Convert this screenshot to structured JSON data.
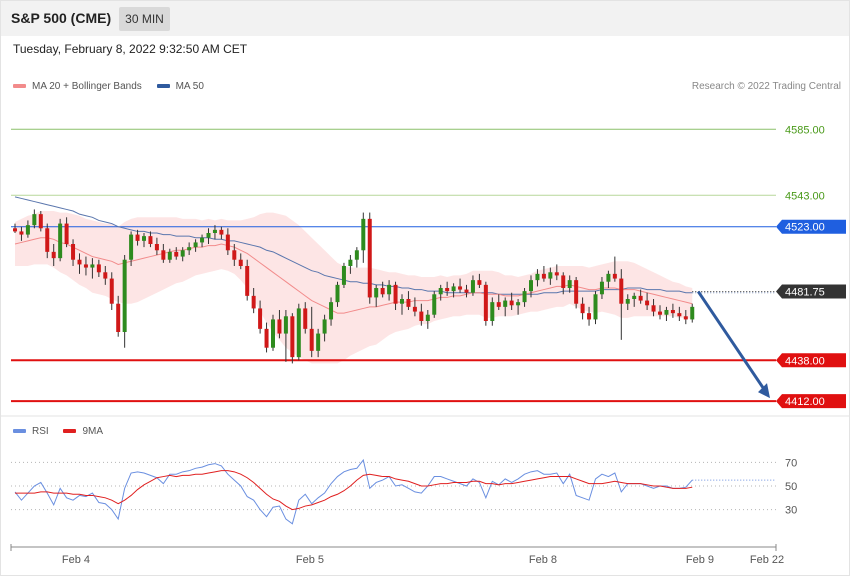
{
  "header": {
    "symbol": "S&P 500 (CME)",
    "interval": "30 MIN",
    "datetime": "Tuesday, February 8, 2022 9:32:50 AM CET",
    "credit": "Research © 2022 Trading Central"
  },
  "legend_main": [
    {
      "label": "MA 20 + Bollinger Bands",
      "color": "#f28b8b"
    },
    {
      "label": "MA 50",
      "color": "#2f5a9e"
    }
  ],
  "legend_rsi": [
    {
      "label": "RSI",
      "color": "#6a8fe0"
    },
    {
      "label": "9MA",
      "color": "#e02020"
    }
  ],
  "chart_data": [
    {
      "type": "candlestick",
      "ylim": [
        4400,
        4610
      ],
      "x_labels": [
        "Feb 4",
        "Feb 5",
        "Feb 8",
        "Feb 9",
        "Feb 22"
      ],
      "current_price": "4481.75",
      "levels": [
        {
          "value": 4585.0,
          "label": "4585.00",
          "color": "#8cc06a",
          "text_color": "#4a9a1a",
          "style": "line"
        },
        {
          "value": 4543.0,
          "label": "4543.00",
          "color": "#b7d79a",
          "text_color": "#4a9a1a",
          "style": "line"
        },
        {
          "value": 4523.0,
          "label": "4523.00",
          "color": "#1f5fe0",
          "text_color": "#ffffff",
          "style": "tag"
        },
        {
          "value": 4438.0,
          "label": "4438.00",
          "color": "#e01010",
          "text_color": "#ffffff",
          "style": "tag"
        },
        {
          "value": 4412.0,
          "label": "4412.00",
          "color": "#e01010",
          "text_color": "#ffffff",
          "style": "tag"
        }
      ],
      "candles": [
        [
          4522,
          4525,
          4519,
          4520
        ],
        [
          4520,
          4523,
          4514,
          4518
        ],
        [
          4518,
          4527,
          4516,
          4524
        ],
        [
          4524,
          4534,
          4522,
          4531
        ],
        [
          4531,
          4533,
          4520,
          4522
        ],
        [
          4522,
          4525,
          4503,
          4507
        ],
        [
          4507,
          4512,
          4498,
          4503
        ],
        [
          4503,
          4528,
          4501,
          4525
        ],
        [
          4525,
          4529,
          4510,
          4512
        ],
        [
          4512,
          4515,
          4498,
          4502
        ],
        [
          4502,
          4506,
          4493,
          4499
        ],
        [
          4499,
          4504,
          4492,
          4497
        ],
        [
          4497,
          4503,
          4490,
          4499
        ],
        [
          4499,
          4502,
          4491,
          4494
        ],
        [
          4494,
          4498,
          4486,
          4490
        ],
        [
          4490,
          4494,
          4470,
          4474
        ],
        [
          4474,
          4479,
          4453,
          4456
        ],
        [
          4456,
          4505,
          4446,
          4502
        ],
        [
          4502,
          4520,
          4498,
          4518
        ],
        [
          4518,
          4521,
          4511,
          4514
        ],
        [
          4514,
          4519,
          4510,
          4517
        ],
        [
          4517,
          4520,
          4510,
          4512
        ],
        [
          4512,
          4516,
          4505,
          4508
        ],
        [
          4508,
          4512,
          4500,
          4502
        ],
        [
          4502,
          4509,
          4500,
          4507
        ],
        [
          4507,
          4510,
          4502,
          4504
        ],
        [
          4504,
          4510,
          4501,
          4508
        ],
        [
          4508,
          4513,
          4505,
          4510
        ],
        [
          4510,
          4515,
          4507,
          4513
        ],
        [
          4513,
          4518,
          4510,
          4516
        ],
        [
          4516,
          4522,
          4512,
          4519
        ],
        [
          4519,
          4524,
          4515,
          4521
        ],
        [
          4521,
          4523,
          4515,
          4518
        ],
        [
          4518,
          4522,
          4505,
          4508
        ],
        [
          4508,
          4512,
          4498,
          4502
        ],
        [
          4502,
          4506,
          4496,
          4498
        ],
        [
          4498,
          4502,
          4476,
          4479
        ],
        [
          4479,
          4484,
          4468,
          4471
        ],
        [
          4471,
          4476,
          4455,
          4458
        ],
        [
          4458,
          4462,
          4443,
          4446
        ],
        [
          4446,
          4467,
          4444,
          4464
        ],
        [
          4464,
          4470,
          4452,
          4455
        ],
        [
          4455,
          4470,
          4437,
          4466
        ],
        [
          4466,
          4468,
          4436,
          4440
        ],
        [
          4440,
          4474,
          4438,
          4471
        ],
        [
          4471,
          4475,
          4455,
          4458
        ],
        [
          4458,
          4472,
          4440,
          4444
        ],
        [
          4444,
          4458,
          4440,
          4455
        ],
        [
          4455,
          4467,
          4450,
          4464
        ],
        [
          4464,
          4478,
          4460,
          4475
        ],
        [
          4475,
          4488,
          4472,
          4486
        ],
        [
          4486,
          4500,
          4484,
          4498
        ],
        [
          4498,
          4505,
          4493,
          4502
        ],
        [
          4502,
          4510,
          4497,
          4508
        ],
        [
          4508,
          4532,
          4500,
          4528
        ],
        [
          4528,
          4532,
          4474,
          4478
        ],
        [
          4478,
          4486,
          4472,
          4484
        ],
        [
          4484,
          4488,
          4478,
          4480
        ],
        [
          4480,
          4489,
          4476,
          4486
        ],
        [
          4486,
          4488,
          4470,
          4474
        ],
        [
          4474,
          4480,
          4467,
          4477
        ],
        [
          4477,
          4482,
          4470,
          4472
        ],
        [
          4472,
          4478,
          4466,
          4469
        ],
        [
          4469,
          4474,
          4460,
          4463
        ],
        [
          4463,
          4470,
          4458,
          4467
        ],
        [
          4467,
          4482,
          4465,
          4480
        ],
        [
          4480,
          4486,
          4476,
          4484
        ],
        [
          4484,
          4488,
          4479,
          4482
        ],
        [
          4482,
          4487,
          4478,
          4485
        ],
        [
          4485,
          4490,
          4481,
          4483
        ],
        [
          4483,
          4486,
          4478,
          4481
        ],
        [
          4481,
          4492,
          4479,
          4489
        ],
        [
          4489,
          4493,
          4484,
          4486
        ],
        [
          4486,
          4488,
          4460,
          4463
        ],
        [
          4463,
          4478,
          4460,
          4475
        ],
        [
          4475,
          4480,
          4470,
          4472
        ],
        [
          4472,
          4478,
          4466,
          4476
        ],
        [
          4476,
          4481,
          4470,
          4473
        ],
        [
          4473,
          4477,
          4467,
          4475
        ],
        [
          4475,
          4484,
          4472,
          4482
        ],
        [
          4482,
          4492,
          4478,
          4489
        ],
        [
          4489,
          4496,
          4485,
          4493
        ],
        [
          4493,
          4498,
          4488,
          4490
        ],
        [
          4490,
          4497,
          4486,
          4494
        ],
        [
          4494,
          4499,
          4489,
          4492
        ],
        [
          4492,
          4494,
          4480,
          4484
        ],
        [
          4484,
          4492,
          4481,
          4489
        ],
        [
          4489,
          4491,
          4471,
          4474
        ],
        [
          4474,
          4478,
          4464,
          4468
        ],
        [
          4468,
          4472,
          4460,
          4464
        ],
        [
          4464,
          4482,
          4461,
          4480
        ],
        [
          4480,
          4491,
          4477,
          4488
        ],
        [
          4488,
          4495,
          4484,
          4493
        ],
        [
          4493,
          4504,
          4488,
          4490
        ],
        [
          4490,
          4496,
          4451,
          4474
        ],
        [
          4474,
          4480,
          4470,
          4477
        ],
        [
          4477,
          4481,
          4472,
          4479
        ],
        [
          4479,
          4483,
          4474,
          4476
        ],
        [
          4476,
          4481,
          4470,
          4473
        ],
        [
          4473,
          4477,
          4466,
          4469
        ],
        [
          4469,
          4473,
          4464,
          4467
        ],
        [
          4467,
          4472,
          4463,
          4470
        ],
        [
          4470,
          4474,
          4465,
          4468
        ],
        [
          4468,
          4472,
          4463,
          4466
        ],
        [
          4466,
          4470,
          4461,
          4464
        ],
        [
          4464,
          4474,
          4462,
          4472
        ]
      ],
      "ma20": [
        4512,
        4513,
        4514,
        4515,
        4516,
        4516,
        4515,
        4513,
        4512,
        4510,
        4508,
        4506,
        4504,
        4503,
        4502,
        4501,
        4499,
        4500,
        4501,
        4502,
        4503,
        4504,
        4505,
        4506,
        4507,
        4508,
        4508,
        4509,
        4510,
        4510,
        4511,
        4511,
        4512,
        4511,
        4510,
        4508,
        4506,
        4503,
        4500,
        4497,
        4494,
        4491,
        4488,
        4485,
        4482,
        4479,
        4476,
        4474,
        4472,
        4470,
        4468,
        4468,
        4469,
        4470,
        4471,
        4472,
        4472,
        4473,
        4474,
        4475,
        4475,
        4475,
        4476,
        4476,
        4476,
        4477,
        4478,
        4478,
        4479,
        4479,
        4480,
        4481,
        4481,
        4480,
        4480,
        4480,
        4479,
        4479,
        4479,
        4480,
        4481,
        4482,
        4483,
        4484,
        4485,
        4485,
        4486,
        4485,
        4484,
        4483,
        4483,
        4484,
        4484,
        4484,
        4483,
        4483,
        4483,
        4482,
        4481,
        4480,
        4479,
        4478,
        4477,
        4476,
        4475,
        4474
      ],
      "ma50": [
        4542,
        4541,
        4540,
        4539,
        4538,
        4537,
        4536,
        4535,
        4534,
        4533,
        4531,
        4530,
        4529,
        4527,
        4526,
        4525,
        4523,
        4522,
        4521,
        4520,
        4520,
        4519,
        4519,
        4518,
        4518,
        4517,
        4517,
        4517,
        4516,
        4516,
        4516,
        4515,
        4515,
        4514,
        4514,
        4513,
        4512,
        4511,
        4510,
        4508,
        4507,
        4505,
        4503,
        4501,
        4499,
        4497,
        4495,
        4494,
        4492,
        4491,
        4490,
        4489,
        4488,
        4488,
        4487,
        4487,
        4486,
        4486,
        4485,
        4485,
        4484,
        4484,
        4483,
        4483,
        4482,
        4482,
        4482,
        4481,
        4481,
        4481,
        4481,
        4481,
        4481,
        4481,
        4481,
        4480,
        4480,
        4480,
        4480,
        4480,
        4480,
        4480,
        4481,
        4481,
        4481,
        4482,
        4482,
        4482,
        4482,
        4482,
        4482,
        4483,
        4483,
        4483,
        4483,
        4484,
        4484,
        4484,
        4483,
        4483,
        4483,
        4482,
        4482,
        4482,
        4481,
        4481
      ],
      "bb_width": [
        14,
        15,
        16,
        16,
        17,
        17,
        18,
        19,
        20,
        21,
        22,
        22,
        23,
        23,
        23,
        24,
        24,
        26,
        27,
        27,
        26,
        25,
        24,
        23,
        22,
        21,
        20,
        19,
        18,
        17,
        17,
        16,
        16,
        16,
        17,
        19,
        22,
        26,
        31,
        35,
        38,
        40,
        42,
        42,
        42,
        41,
        40,
        38,
        36,
        34,
        32,
        30,
        28,
        27,
        26,
        25,
        24,
        22,
        20,
        19,
        18,
        17,
        16,
        15,
        15,
        14,
        14,
        13,
        13,
        13,
        13,
        14,
        14,
        15,
        15,
        14,
        13,
        13,
        12,
        12,
        12,
        13,
        13,
        13,
        13,
        13,
        12,
        13,
        14,
        14,
        15,
        15,
        16,
        17,
        18,
        18,
        17,
        16,
        15,
        14,
        13,
        12,
        11,
        11,
        10,
        10
      ],
      "forecast": {
        "from": 4481.75,
        "to": 4412.0
      }
    },
    {
      "type": "line",
      "title": "RSI",
      "ylim": [
        0,
        100
      ],
      "levels": [
        70,
        50,
        30
      ],
      "series": [
        {
          "name": "RSI",
          "color": "#6a8fe0",
          "values": [
            45,
            38,
            44,
            50,
            53,
            44,
            34,
            48,
            40,
            38,
            42,
            41,
            44,
            36,
            35,
            30,
            22,
            48,
            61,
            62,
            61,
            59,
            57,
            52,
            60,
            60,
            62,
            63,
            65,
            66,
            68,
            69,
            67,
            60,
            55,
            50,
            41,
            38,
            30,
            24,
            32,
            33,
            22,
            18,
            38,
            43,
            35,
            40,
            44,
            52,
            58,
            62,
            64,
            65,
            72,
            48,
            53,
            55,
            58,
            50,
            51,
            48,
            45,
            44,
            50,
            58,
            58,
            56,
            54,
            52,
            50,
            56,
            53,
            40,
            54,
            51,
            56,
            53,
            56,
            60,
            62,
            63,
            60,
            60,
            61,
            52,
            60,
            42,
            40,
            38,
            56,
            60,
            58,
            61,
            45,
            52,
            52,
            52,
            50,
            48,
            50,
            50,
            48,
            48,
            49,
            55
          ]
        },
        {
          "name": "9MA",
          "color": "#e02020",
          "values": [
            44,
            44,
            44,
            44,
            45,
            45,
            44,
            44,
            44,
            43,
            43,
            42,
            42,
            41,
            40,
            38,
            35,
            38,
            42,
            47,
            51,
            54,
            57,
            58,
            59,
            58,
            59,
            59,
            60,
            60,
            61,
            62,
            63,
            63,
            62,
            60,
            57,
            53,
            48,
            43,
            39,
            37,
            33,
            30,
            31,
            33,
            34,
            36,
            38,
            41,
            43,
            46,
            50,
            55,
            59,
            60,
            59,
            58,
            58,
            56,
            55,
            54,
            52,
            50,
            50,
            51,
            52,
            52,
            53,
            53,
            53,
            54,
            54,
            52,
            52,
            51,
            52,
            52,
            53,
            54,
            55,
            56,
            57,
            58,
            58,
            58,
            58,
            56,
            54,
            52,
            52,
            52,
            53,
            54,
            53,
            52,
            52,
            52,
            51,
            50,
            50,
            49,
            48,
            48,
            48,
            49
          ]
        }
      ]
    }
  ]
}
